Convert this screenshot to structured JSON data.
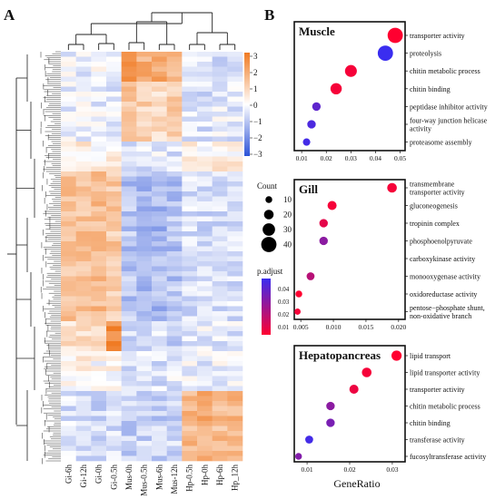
{
  "panels": {
    "a_label": "A",
    "b_label": "B"
  },
  "chart_data": [
    {
      "type": "heatmap",
      "panel": "A",
      "columns": [
        "Gi-6h",
        "Gi-12h",
        "Gi-0h",
        "Gi-0.5h",
        "Mus-0h",
        "Mus-0.5h",
        "Mus-6h",
        "Mus-12h",
        "Hp-0.5h",
        "Hp-0h",
        "Hp-6h",
        "Hp_12h"
      ],
      "column_order_note_removed": "",
      "row_blocks": [
        {
          "rows": 6,
          "profile": [
            -0.2,
            -0.3,
            -0.1,
            -0.2,
            2.2,
            1.8,
            2.0,
            1.6,
            -0.5,
            -0.4,
            -0.6,
            -0.5
          ]
        },
        {
          "rows": 12,
          "profile": [
            -0.3,
            -0.2,
            -0.3,
            -0.4,
            1.2,
            1.0,
            0.9,
            1.1,
            -0.4,
            -0.5,
            -0.3,
            -0.4
          ]
        },
        {
          "rows": 6,
          "profile": [
            0.3,
            0.4,
            0.2,
            0.3,
            -0.6,
            -0.5,
            -0.4,
            -0.5,
            0.2,
            0.1,
            0.4,
            0.3
          ]
        },
        {
          "rows": 30,
          "profile": [
            1.3,
            1.4,
            1.5,
            1.2,
            -1.0,
            -1.1,
            -1.2,
            -1.0,
            -0.5,
            -0.6,
            -0.6,
            -0.5
          ]
        },
        {
          "rows": 6,
          "profile": [
            0.7,
            0.8,
            0.9,
            2.6,
            -0.6,
            -0.7,
            -0.6,
            -0.7,
            -0.4,
            -0.3,
            -0.4,
            -0.4
          ]
        },
        {
          "rows": 8,
          "profile": [
            0.2,
            0.3,
            0.1,
            0.2,
            -0.5,
            -0.4,
            -0.5,
            -0.4,
            -0.2,
            -0.3,
            -0.2,
            -0.3
          ]
        },
        {
          "rows": 14,
          "profile": [
            -0.5,
            -0.5,
            -0.6,
            -0.5,
            -0.8,
            -0.7,
            -0.8,
            -0.7,
            1.6,
            1.8,
            1.5,
            1.7
          ]
        }
      ],
      "colorscale": {
        "min": -3,
        "max": 3,
        "low": "#2b52d8",
        "mid": "#ffffff",
        "high": "#f07a22"
      },
      "colorbar_ticks": [
        "3",
        "2",
        "1",
        "0",
        "−1",
        "−2",
        "−3"
      ]
    },
    {
      "type": "scatter",
      "panel": "B",
      "title": "Muscle",
      "xlim": [
        0.007,
        0.052
      ],
      "xticks": [
        "0.01",
        "0.02",
        "0.03",
        "0.04",
        "0.05"
      ],
      "xtick_values": [
        0.01,
        0.02,
        0.03,
        0.04,
        0.05
      ],
      "terms": [
        "transporter activity",
        "proteolysis",
        "chitin metabolic process",
        "chitin binding",
        "peptidase inhibitor activity",
        "four-way junction helicase activity",
        "proteasome assembly"
      ],
      "term_lines": [
        [
          "transporter activity"
        ],
        [
          "proteolysis"
        ],
        [
          "chitin metabolic process"
        ],
        [
          "chitin binding"
        ],
        [
          "peptidase inhibitor activity"
        ],
        [
          "four-way junction helicase",
          "activity"
        ],
        [
          "proteasome assembly"
        ]
      ],
      "gene_ratio": [
        0.048,
        0.044,
        0.03,
        0.024,
        0.016,
        0.014,
        0.012
      ],
      "count": [
        40,
        40,
        28,
        26,
        16,
        16,
        12
      ],
      "p_adjust": [
        0.004,
        0.048,
        0.006,
        0.006,
        0.04,
        0.044,
        0.046
      ]
    },
    {
      "type": "scatter",
      "panel": "B",
      "title": "Gill",
      "xlim": [
        0.004,
        0.021
      ],
      "xticks": [
        "0.005",
        "0.010",
        "0.015",
        "0.020"
      ],
      "xtick_values": [
        0.005,
        0.01,
        0.015,
        0.02
      ],
      "terms": [
        "transmembrane transporter activity",
        "gluconeogenesis",
        "tropinin complex",
        "phosphoenolpyruvate",
        "carboxykinase activity",
        "monooxygenase activity",
        "oxidoreductase activity",
        "pentose−phosphate shunt, non-oxidative branch"
      ],
      "term_lines": [
        [
          "transmembrane",
          "transporter activity"
        ],
        [
          "gluconeogenesis"
        ],
        [
          "tropinin complex"
        ],
        [
          "phosphoenolpyruvate"
        ],
        [
          "carboxykinase activity"
        ],
        [
          "monooxygenase activity"
        ],
        [
          "oxidoreductase activity"
        ],
        [
          "pentose−phosphate shunt,",
          "non-oxidative branch"
        ]
      ],
      "gene_ratio": [
        0.019,
        0.0098,
        0.0085,
        0.0085,
        null,
        0.0065,
        0.0047,
        0.0045
      ],
      "count": [
        20,
        18,
        16,
        16,
        null,
        14,
        10,
        8
      ],
      "p_adjust": [
        0.006,
        0.006,
        0.01,
        0.03,
        null,
        0.02,
        0.004,
        0.006
      ]
    },
    {
      "type": "scatter",
      "panel": "B",
      "title": "Hepatopancreas",
      "xlim": [
        0.007,
        0.033
      ],
      "xticks": [
        "0.01",
        "0.02",
        "0.03"
      ],
      "xtick_values": [
        0.01,
        0.02,
        0.03
      ],
      "terms": [
        "lipid transport",
        "lipid transporter activity",
        "transporter activity",
        "chitin metabolic process",
        "chitin binding",
        "transferase activity",
        "fucosyltransferase activity"
      ],
      "term_lines": [
        [
          "lipid transport"
        ],
        [
          "lipid transporter activity"
        ],
        [
          "transporter activity"
        ],
        [
          "chitin metabolic process"
        ],
        [
          "chitin binding"
        ],
        [
          "transferase activity"
        ],
        [
          "fucosyltransferase activity"
        ]
      ],
      "gene_ratio": [
        0.031,
        0.024,
        0.021,
        0.0155,
        0.0155,
        0.0105,
        0.008
      ],
      "count": [
        22,
        20,
        18,
        16,
        16,
        14,
        10
      ],
      "p_adjust": [
        0.004,
        0.006,
        0.008,
        0.03,
        0.034,
        0.046,
        0.032
      ]
    },
    {
      "type": "legend",
      "panel": "B",
      "count_title": "Count",
      "count_values": [
        10,
        20,
        30,
        40
      ],
      "padj_title": "p.adjust",
      "padj_ticks": [
        "0.04",
        "0.03",
        "0.02",
        "0.01"
      ],
      "padj_values": [
        0.04,
        0.03,
        0.02,
        0.01
      ],
      "padj_low_color": "#ff0030",
      "padj_high_color": "#3a2df0",
      "xlabel": "GeneRatio"
    }
  ]
}
